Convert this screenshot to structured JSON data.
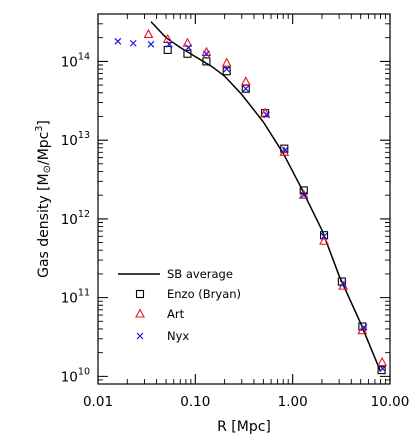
{
  "chart_data": {
    "type": "scatter",
    "xscale": "log",
    "yscale": "log",
    "xlim": [
      0.01,
      10
    ],
    "ylim": [
      8000000000,
      400000000000000
    ],
    "xlabel": "R [Mpc]",
    "ylabel_main": "Gas density [M",
    "ylabel_sub": "⊙",
    "ylabel_mid": "/Mpc",
    "ylabel_sup": "3",
    "ylabel_end": "]",
    "x_ticks": [
      {
        "value": 0.01,
        "label": "0.01"
      },
      {
        "value": 0.1,
        "label": "0.10"
      },
      {
        "value": 1,
        "label": "1.00"
      },
      {
        "value": 10,
        "label": "10.00"
      }
    ],
    "y_ticks": [
      {
        "value": 10000000000,
        "base": "10",
        "exp": "10"
      },
      {
        "value": 100000000000,
        "base": "10",
        "exp": "11"
      },
      {
        "value": 1000000000000,
        "base": "10",
        "exp": "12"
      },
      {
        "value": 10000000000000,
        "base": "10",
        "exp": "13"
      },
      {
        "value": 100000000000000,
        "base": "10",
        "exp": "14"
      }
    ],
    "legend_position": "lower-left",
    "series": [
      {
        "name": "SB average",
        "kind": "line",
        "color": "#000000",
        "x": [
          0.035,
          0.05,
          0.07,
          0.1,
          0.15,
          0.2,
          0.3,
          0.5,
          0.8,
          1.2,
          2.0,
          3.0,
          5.0,
          8.0
        ],
        "y": [
          320000000000000,
          200000000000000,
          150000000000000,
          115000000000000,
          85000000000000,
          65000000000000,
          38000000000000,
          17000000000000,
          6800000000000,
          2600000000000,
          720000000000,
          190000000000,
          47000000000,
          11500000000
        ]
      },
      {
        "name": "Enzo (Bryan)",
        "kind": "square",
        "color": "#000000",
        "x": [
          0.052,
          0.083,
          0.13,
          0.21,
          0.33,
          0.52,
          0.82,
          1.3,
          2.1,
          3.2,
          5.2,
          8.2
        ],
        "y": [
          140000000000000,
          125000000000000,
          100000000000000,
          75000000000000,
          45000000000000,
          22000000000000,
          7800000000000,
          2300000000000,
          620000000000,
          160000000000,
          43000000000,
          12000000000
        ]
      },
      {
        "name": "Art",
        "kind": "triangle",
        "color": "#e8141e",
        "x": [
          0.033,
          0.052,
          0.083,
          0.13,
          0.21,
          0.33,
          0.52,
          0.82,
          1.3,
          2.1,
          3.3,
          5.2,
          8.3
        ],
        "y": [
          220000000000000,
          190000000000000,
          170000000000000,
          130000000000000,
          95000000000000,
          55000000000000,
          22000000000000,
          7000000000000,
          2000000000000,
          520000000000,
          140000000000,
          38000000000,
          15000000000
        ]
      },
      {
        "name": "Nyx",
        "kind": "cross",
        "color": "#1a1adc",
        "x": [
          0.016,
          0.023,
          0.035,
          0.054,
          0.085,
          0.13,
          0.21,
          0.33,
          0.54,
          0.84,
          1.3,
          2.1,
          3.3,
          5.4,
          8.4
        ],
        "y": [
          180000000000000,
          170000000000000,
          165000000000000,
          165000000000000,
          150000000000000,
          125000000000000,
          80000000000000,
          45000000000000,
          21000000000000,
          7500000000000,
          2000000000000,
          600000000000,
          150000000000,
          42000000000,
          12500000000
        ]
      }
    ]
  }
}
